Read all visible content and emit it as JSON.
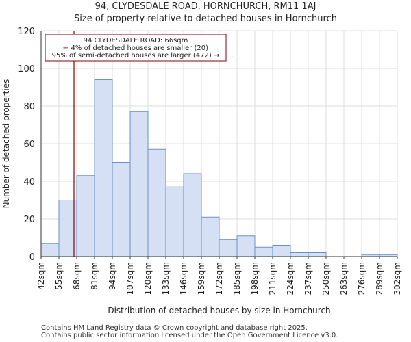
{
  "header": {
    "title": "94, CLYDESDALE ROAD, HORNCHURCH, RM11 1AJ",
    "subtitle": "Size of property relative to detached houses in Hornchurch"
  },
  "footer": {
    "line1": "Contains HM Land Registry data © Crown copyright and database right 2025.",
    "line2": "Contains public sector information licensed under the Open Government Licence v3.0."
  },
  "chart_data": {
    "type": "bar",
    "title": "94, CLYDESDALE ROAD, HORNCHURCH, RM11 1AJ",
    "subtitle": "Size of property relative to detached houses in Hornchurch",
    "xlabel": "Distribution of detached houses by size in Hornchurch",
    "ylabel": "Number of detached properties",
    "ylim": [
      0,
      120
    ],
    "yticks": [
      0,
      20,
      40,
      60,
      80,
      100,
      120
    ],
    "bin_edges": [
      42,
      55,
      68,
      81,
      94,
      107,
      120,
      133,
      146,
      159,
      172,
      185,
      198,
      211,
      224,
      237,
      250,
      263,
      276,
      289,
      302
    ],
    "xtick_labels": [
      "42sqm",
      "55sqm",
      "68sqm",
      "81sqm",
      "94sqm",
      "107sqm",
      "120sqm",
      "133sqm",
      "146sqm",
      "159sqm",
      "172sqm",
      "185sqm",
      "198sqm",
      "211sqm",
      "224sqm",
      "237sqm",
      "250sqm",
      "263sqm",
      "276sqm",
      "289sqm",
      "302sqm"
    ],
    "values": [
      7,
      30,
      43,
      94,
      50,
      77,
      57,
      37,
      44,
      21,
      9,
      11,
      5,
      6,
      2,
      2,
      0,
      0,
      1,
      1
    ],
    "bar_fill": "#d6e0f5",
    "bar_stroke": "#6a8fcb",
    "marker": {
      "value": 66,
      "color": "#8b0000",
      "label_lines": [
        "94 CLYDESDALE ROAD: 66sqm",
        "← 4% of detached houses are smaller (20)",
        "95% of semi-detached houses are larger (472) →"
      ]
    },
    "grid": true
  }
}
